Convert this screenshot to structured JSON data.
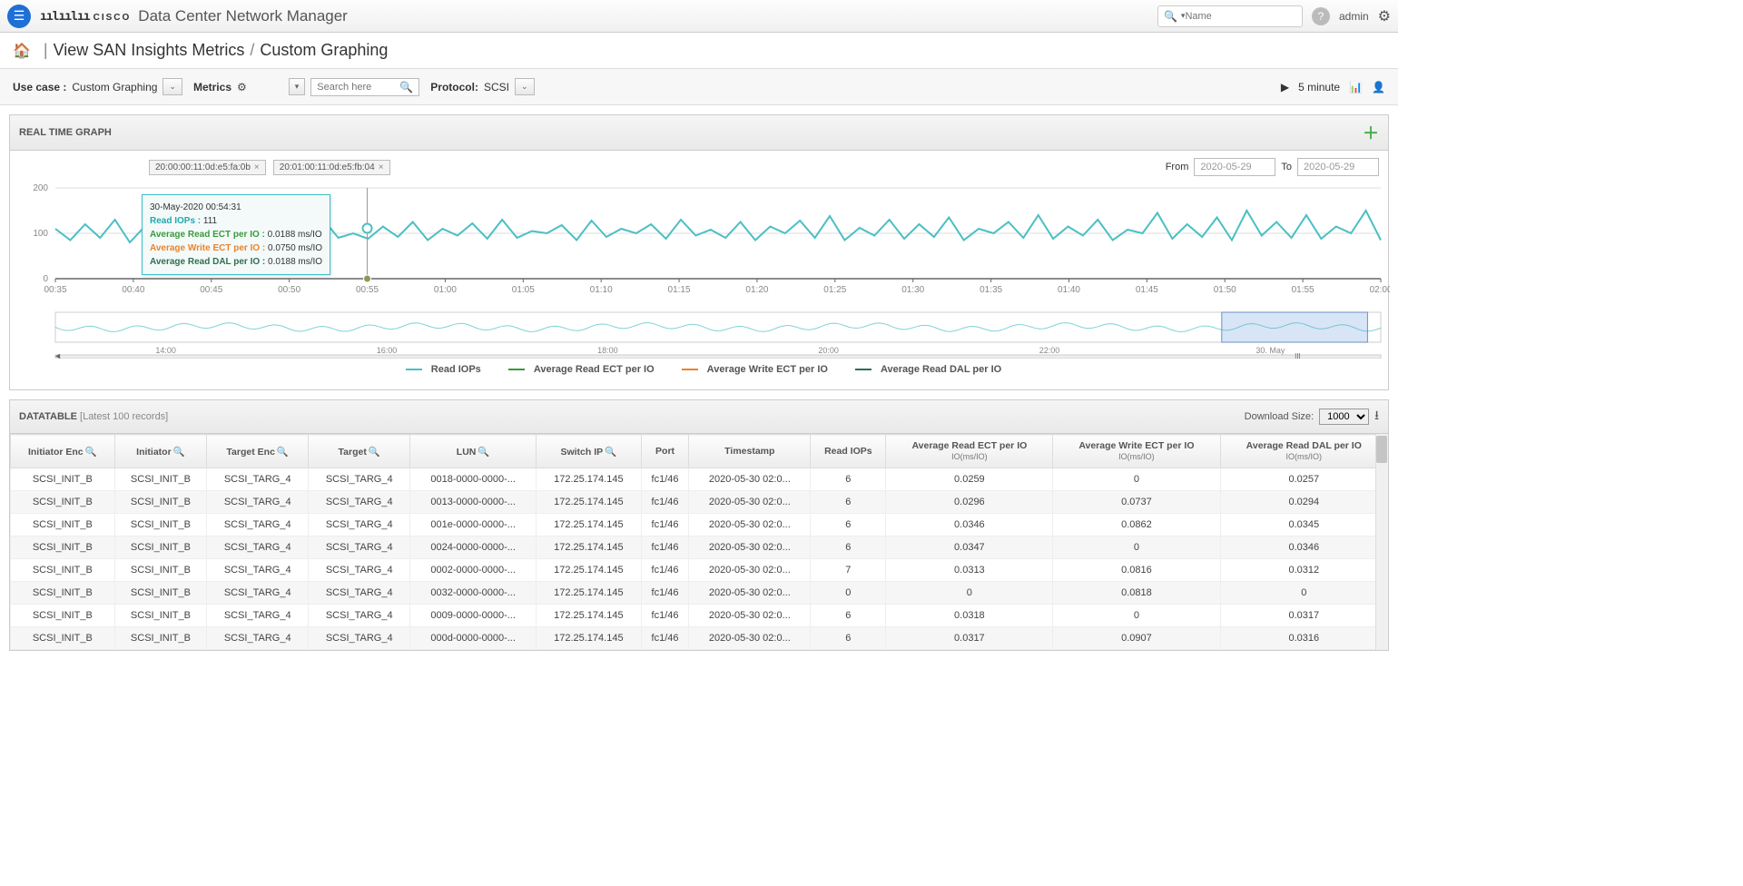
{
  "header": {
    "app_title": "Data Center Network Manager",
    "search_placeholder": "Name",
    "user": "admin"
  },
  "breadcrumb": {
    "home": "⌂",
    "path1": "View SAN Insights Metrics",
    "path2": "Custom Graphing"
  },
  "toolbar": {
    "usecase_label": "Use case :",
    "usecase_value": "Custom Graphing",
    "metrics_label": "Metrics",
    "search_placeholder": "Search here",
    "protocol_label": "Protocol:",
    "protocol_value": "SCSI",
    "refresh": "5 minute"
  },
  "chart": {
    "panel_title": "REAL TIME GRAPH",
    "chips": [
      "20:00:00:11:0d:e5:fa:0b",
      "20:01:00:11:0d:e5:fb:04"
    ],
    "from_label": "From",
    "to_label": "To",
    "from_date": "2020-05-29",
    "to_date": "2020-05-29",
    "ylim": [
      0,
      200
    ],
    "yticks": [
      0,
      100,
      200
    ],
    "xticks": [
      "00:35",
      "00:40",
      "00:45",
      "00:50",
      "00:55",
      "01:00",
      "01:05",
      "01:10",
      "01:15",
      "01:20",
      "01:25",
      "01:30",
      "01:35",
      "01:40",
      "01:45",
      "01:50",
      "01:55",
      "02:00"
    ],
    "overview_xticks": [
      "14:00",
      "16:00",
      "18:00",
      "20:00",
      "22:00",
      "30. May"
    ],
    "line_color": "#4bbfc3",
    "colors": {
      "read_iops": "#4bbfc3",
      "read_ect": "#3a9a3a",
      "write_ect": "#e8842c",
      "read_dal": "#2f6f4f"
    },
    "tooltip": {
      "timestamp": "30-May-2020 00:54:31",
      "rows": [
        {
          "label": "Read IOPs",
          "value": "111",
          "color": "#1fa8b0"
        },
        {
          "label": "Average Read ECT per IO",
          "value": "0.0188 ms/IO",
          "color": "#3a9a3a"
        },
        {
          "label": "Average Write ECT per IO",
          "value": "0.0750 ms/IO",
          "color": "#e8842c"
        },
        {
          "label": "Average Read DAL per IO",
          "value": "0.0188 ms/IO",
          "color": "#2f6f4f"
        }
      ]
    },
    "legend": [
      {
        "label": "Read IOPs",
        "color": "#4bbfc3"
      },
      {
        "label": "Average Read ECT per IO",
        "color": "#3a9a3a"
      },
      {
        "label": "Average Write ECT per IO",
        "color": "#e8842c"
      },
      {
        "label": "Average Read DAL per IO",
        "color": "#2f6f4f"
      }
    ],
    "series": [
      110,
      85,
      120,
      90,
      130,
      80,
      115,
      100,
      90,
      130,
      105,
      88,
      111,
      95,
      108,
      92,
      120,
      85,
      130,
      90,
      100,
      88,
      115,
      92,
      125,
      85,
      110,
      95,
      122,
      88,
      130,
      90,
      105,
      100,
      118,
      85,
      128,
      92,
      110,
      100,
      120,
      88,
      130,
      95,
      108,
      90,
      125,
      85,
      115,
      100,
      128,
      90,
      138,
      85,
      112,
      95,
      130,
      88,
      120,
      92,
      135,
      85,
      110,
      100,
      125,
      90,
      140,
      88,
      115,
      95,
      130,
      85,
      108,
      100,
      145,
      88,
      120,
      92,
      135,
      85,
      150,
      95,
      125,
      90,
      140,
      88,
      115,
      100,
      150,
      85
    ]
  },
  "datatable": {
    "title": "DATATABLE",
    "subtitle": "[Latest 100 records]",
    "download_label": "Download Size:",
    "download_value": "1000",
    "columns": [
      "Initiator Enc",
      "Initiator",
      "Target Enc",
      "Target",
      "LUN",
      "Switch IP",
      "Port",
      "Timestamp",
      "Read IOPs",
      "Average Read ECT per IO(ms/IO)",
      "Average Write ECT per IO(ms/IO)",
      "Average Read DAL per IO(ms/IO)"
    ],
    "col_has_search": [
      true,
      true,
      true,
      true,
      true,
      true,
      false,
      false,
      false,
      false,
      false,
      false
    ],
    "rows": [
      [
        "SCSI_INIT_B",
        "SCSI_INIT_B",
        "SCSI_TARG_4",
        "SCSI_TARG_4",
        "0018-0000-0000-...",
        "172.25.174.145",
        "fc1/46",
        "2020-05-30 02:0...",
        "6",
        "0.0259",
        "0",
        "0.0257"
      ],
      [
        "SCSI_INIT_B",
        "SCSI_INIT_B",
        "SCSI_TARG_4",
        "SCSI_TARG_4",
        "0013-0000-0000-...",
        "172.25.174.145",
        "fc1/46",
        "2020-05-30 02:0...",
        "6",
        "0.0296",
        "0.0737",
        "0.0294"
      ],
      [
        "SCSI_INIT_B",
        "SCSI_INIT_B",
        "SCSI_TARG_4",
        "SCSI_TARG_4",
        "001e-0000-0000-...",
        "172.25.174.145",
        "fc1/46",
        "2020-05-30 02:0...",
        "6",
        "0.0346",
        "0.0862",
        "0.0345"
      ],
      [
        "SCSI_INIT_B",
        "SCSI_INIT_B",
        "SCSI_TARG_4",
        "SCSI_TARG_4",
        "0024-0000-0000-...",
        "172.25.174.145",
        "fc1/46",
        "2020-05-30 02:0...",
        "6",
        "0.0347",
        "0",
        "0.0346"
      ],
      [
        "SCSI_INIT_B",
        "SCSI_INIT_B",
        "SCSI_TARG_4",
        "SCSI_TARG_4",
        "0002-0000-0000-...",
        "172.25.174.145",
        "fc1/46",
        "2020-05-30 02:0...",
        "7",
        "0.0313",
        "0.0816",
        "0.0312"
      ],
      [
        "SCSI_INIT_B",
        "SCSI_INIT_B",
        "SCSI_TARG_4",
        "SCSI_TARG_4",
        "0032-0000-0000-...",
        "172.25.174.145",
        "fc1/46",
        "2020-05-30 02:0...",
        "0",
        "0",
        "0.0818",
        "0"
      ],
      [
        "SCSI_INIT_B",
        "SCSI_INIT_B",
        "SCSI_TARG_4",
        "SCSI_TARG_4",
        "0009-0000-0000-...",
        "172.25.174.145",
        "fc1/46",
        "2020-05-30 02:0...",
        "6",
        "0.0318",
        "0",
        "0.0317"
      ],
      [
        "SCSI_INIT_B",
        "SCSI_INIT_B",
        "SCSI_TARG_4",
        "SCSI_TARG_4",
        "000d-0000-0000-...",
        "172.25.174.145",
        "fc1/46",
        "2020-05-30 02:0...",
        "6",
        "0.0317",
        "0.0907",
        "0.0316"
      ]
    ]
  }
}
